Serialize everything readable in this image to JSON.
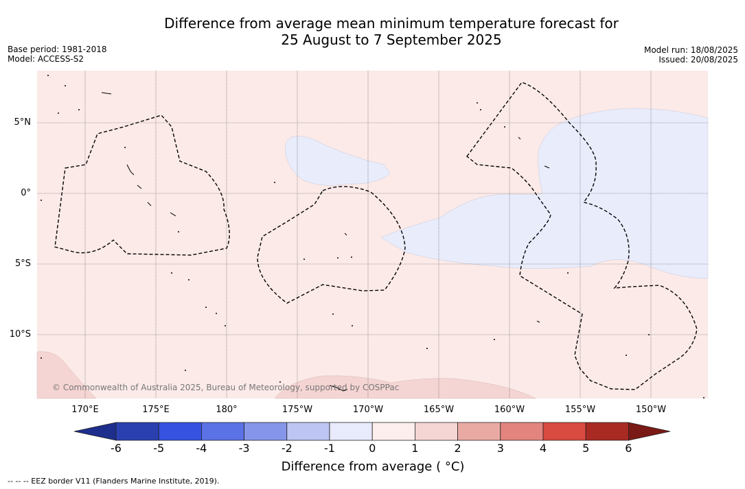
{
  "title_line1": "Difference from average mean minimum temperature forecast for",
  "title_line2": "25 August to 7 September 2025",
  "meta_left": {
    "base_period": "Base period: 1981-2018",
    "model": "Model: ACCESS-S2"
  },
  "meta_right": {
    "model_run": "Model run: 18/08/2025",
    "issued": "Issued: 20/08/2025"
  },
  "map": {
    "lon_labels": [
      "170°E",
      "175°E",
      "180°",
      "175°W",
      "170°W",
      "165°W",
      "160°W",
      "155°W",
      "150°W"
    ],
    "lat_labels": [
      "5°N",
      "0°",
      "5°S",
      "10°S"
    ],
    "credit": "© Commonwealth of Australia 2025, Bureau of Meteorology, supported by COSPPac"
  },
  "colorbar": {
    "title": "Difference from average ( °C)",
    "ticks": [
      "-6",
      "-5",
      "-4",
      "-3",
      "-2",
      "-1",
      "0",
      "1",
      "2",
      "3",
      "4",
      "5",
      "6"
    ],
    "colors": [
      "#1e2e8c",
      "#2a3fb0",
      "#3552e0",
      "#5b72e6",
      "#8596ea",
      "#bdc5f2",
      "#e8ebfb",
      "#fdeeee",
      "#f5d5d3",
      "#eaaaa4",
      "#e3847e",
      "#d94a40",
      "#a82a23",
      "#7a1a16"
    ]
  },
  "footnote": "--  --  -- EEZ border V11 (Flanders Marine Institute, 2019)."
}
